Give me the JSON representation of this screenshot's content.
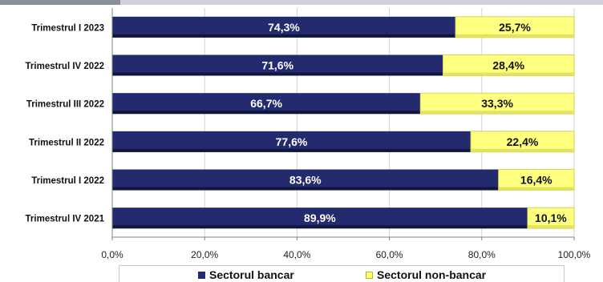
{
  "chart_data": {
    "type": "bar",
    "orientation": "horizontal",
    "stacked": true,
    "categories": [
      "Trimestrul I 2023",
      "Trimestrul IV 2022",
      "Trimestrul III 2022",
      "Trimestrul II 2022",
      "Trimestrul I 2022",
      "Trimestrul IV 2021"
    ],
    "series": [
      {
        "name": "Sectorul bancar",
        "color": "#232a6e",
        "values": [
          74.3,
          71.6,
          66.7,
          77.6,
          83.6,
          89.9
        ],
        "labels": [
          "74,3%",
          "71,6%",
          "66,7%",
          "77,6%",
          "83,6%",
          "89,9%"
        ]
      },
      {
        "name": "Sectorul non-bancar",
        "color": "#ffff80",
        "values": [
          25.7,
          28.4,
          33.3,
          22.4,
          16.4,
          10.1
        ],
        "labels": [
          "25,7%",
          "28,4%",
          "33,3%",
          "22,4%",
          "16,4%",
          "10,1%"
        ]
      }
    ],
    "xlim": [
      0,
      100
    ],
    "xticks": [
      0,
      20,
      40,
      60,
      80,
      100
    ],
    "xtick_labels": [
      "0,0%",
      "20,0%",
      "40,0%",
      "60,0%",
      "80,0%",
      "100,0%"
    ],
    "grid": "vertical",
    "legend_position": "bottom"
  }
}
